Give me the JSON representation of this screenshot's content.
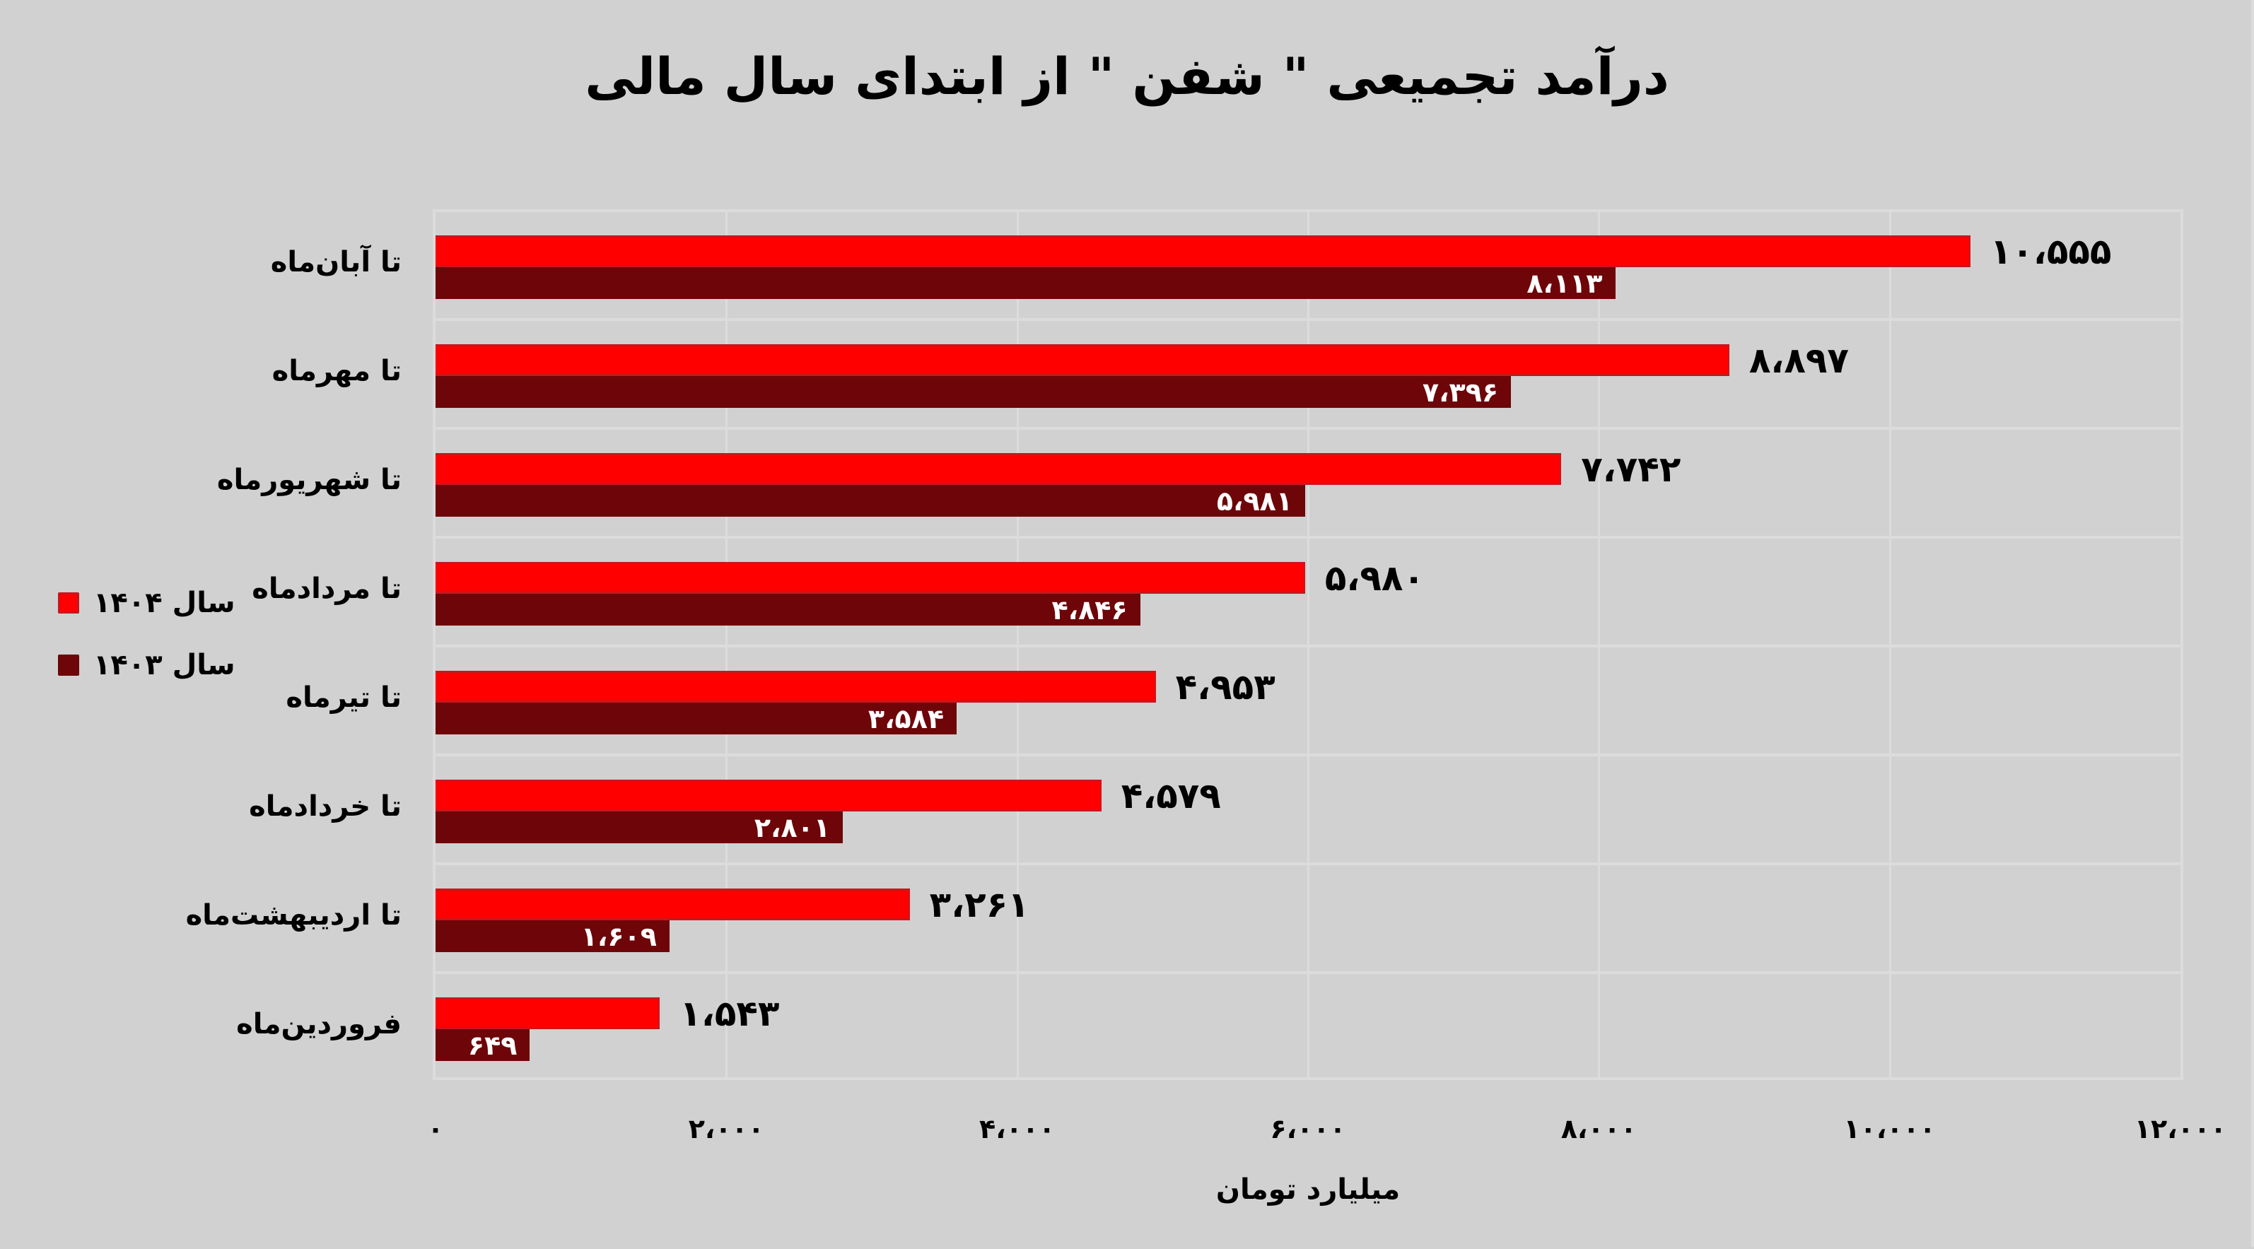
{
  "title": "درآمد تجمیعی \" شفن \" از ابتدای سال مالی",
  "colors": {
    "background": "#d1d1d1",
    "series_1404": "#ff0000",
    "series_1403": "#6e0509",
    "grid": "#dcdcdc"
  },
  "legend": [
    {
      "label": "سال ۱۴۰۴",
      "color": "#ff0000"
    },
    {
      "label": "سال ۱۴۰۳",
      "color": "#6e0509"
    }
  ],
  "x_axis": {
    "label": "میلیارد تومان",
    "ticks": [
      "۰",
      "۲،۰۰۰",
      "۴،۰۰۰",
      "۶،۰۰۰",
      "۸،۰۰۰",
      "۱۰،۰۰۰",
      "۱۲،۰۰۰"
    ]
  },
  "rows": [
    {
      "category": "تا آبان‌ماه",
      "v1404": "۱۰،۵۵۵",
      "v1403": "۸،۱۱۳"
    },
    {
      "category": "تا مهرماه",
      "v1404": "۸،۸۹۷",
      "v1403": "۷،۳۹۶"
    },
    {
      "category": "تا شهریورماه",
      "v1404": "۷،۷۴۲",
      "v1403": "۵،۹۸۱"
    },
    {
      "category": "تا مردادماه",
      "v1404": "۵،۹۸۰",
      "v1403": "۴،۸۴۶"
    },
    {
      "category": "تا تیرماه",
      "v1404": "۴،۹۵۳",
      "v1403": "۳،۵۸۴"
    },
    {
      "category": "تا خردادماه",
      "v1404": "۴،۵۷۹",
      "v1403": "۲،۸۰۱"
    },
    {
      "category": "تا اردیبهشت‌ماه",
      "v1404": "۳،۲۶۱",
      "v1403": "۱،۶۰۹"
    },
    {
      "category": "فروردین‌ماه",
      "v1404": "۱،۵۴۳",
      "v1403": "۶۴۹"
    }
  ],
  "chart_data": {
    "type": "bar",
    "orientation": "horizontal",
    "title": "درآمد تجمیعی \" شفن \" از ابتدای سال مالی",
    "xlabel": "میلیارد تومان",
    "ylabel": "",
    "xlim": [
      0,
      12000
    ],
    "xticks": [
      0,
      2000,
      4000,
      6000,
      8000,
      10000,
      12000
    ],
    "grid": true,
    "legend_position": "left",
    "categories": [
      "تا آبان‌ماه",
      "تا مهرماه",
      "تا شهریورماه",
      "تا مردادماه",
      "تا تیرماه",
      "تا خردادماه",
      "تا اردیبهشت‌ماه",
      "فروردین‌ماه"
    ],
    "series": [
      {
        "name": "سال ۱۴۰۴",
        "color": "#ff0000",
        "values": [
          10555,
          8897,
          7742,
          5980,
          4953,
          4579,
          3261,
          1543
        ]
      },
      {
        "name": "سال ۱۴۰۳",
        "color": "#6e0509",
        "values": [
          8113,
          7396,
          5981,
          4846,
          3584,
          2801,
          1609,
          649
        ]
      }
    ]
  }
}
